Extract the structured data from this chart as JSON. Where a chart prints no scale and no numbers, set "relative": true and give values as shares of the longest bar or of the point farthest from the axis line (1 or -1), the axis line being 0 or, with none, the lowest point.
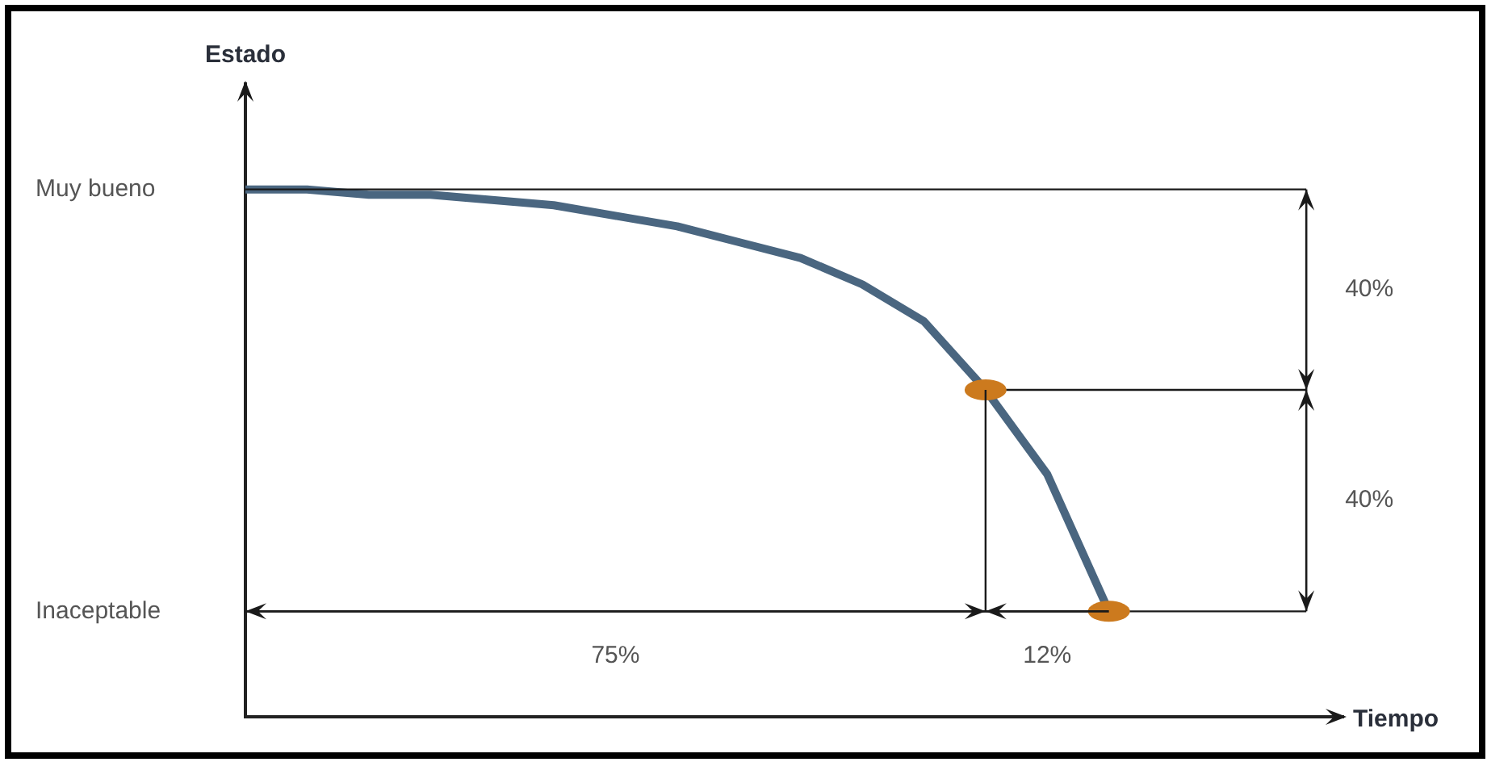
{
  "chart_data": {
    "type": "line",
    "ylabel": "Estado",
    "categories": [
      null,
      null,
      null,
      null,
      null,
      null,
      null,
      null,
      null,
      null,
      null,
      null,
      null,
      null,
      null
    ],
    "relative": true,
    "legend": false,
    "marker": "none",
    "series": [
      {
        "color": "#4a6680",
        "values": [
          1,
          1,
          0.99,
          0.99,
          0.98,
          0.97,
          0.95,
          0.93,
          0.9,
          0.87,
          0.82,
          0.75,
          0.62,
          0.46,
          0.2
        ]
      }
    ],
    "ref_lines": [
      {
        "axis": "y",
        "value": 1,
        "color": "#1a1a1a"
      },
      {
        "axis": "y",
        "value": 0.62,
        "color": "#1a1a1a"
      },
      {
        "axis": "y",
        "value": 0.2,
        "color": "#1a1a1a"
      }
    ],
    "annotations": [
      "Muy bueno",
      "Inaceptable",
      "40%",
      "40%",
      "75%",
      "12%",
      "Tiempo"
    ]
  }
}
